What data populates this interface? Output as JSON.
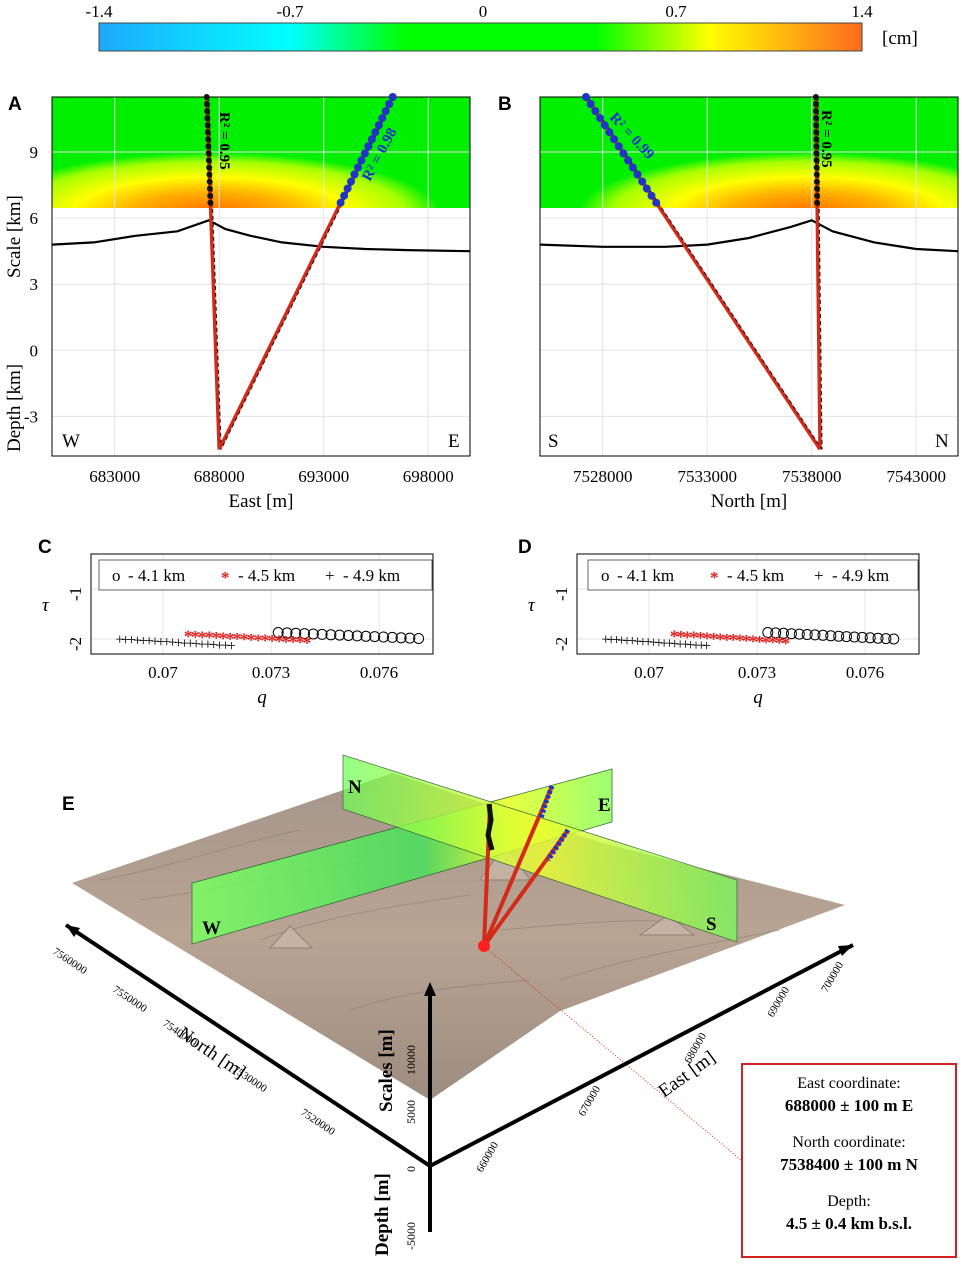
{
  "colorbar": {
    "ticks": [
      "-1.4",
      "-0.7",
      "0",
      "0.7",
      "1.4"
    ],
    "unit": "[cm]",
    "colors": [
      "#1aa3ff",
      "#00ffff",
      "#00ff00",
      "#00ff00",
      "#ffff00",
      "#ff6a1e"
    ]
  },
  "panel_a": {
    "letter": "A",
    "xlabel": "East [m]",
    "ylabel": "Depth [km]",
    "ylabel2": "Scale [km]",
    "left_dir": "W",
    "right_dir": "E",
    "r2_black": "R² = 0.95",
    "r2_blue": "R² = 0.98"
  },
  "panel_b": {
    "letter": "B",
    "xlabel": "North [m]",
    "left_dir": "S",
    "right_dir": "N",
    "r2_black": "R² = 0.95",
    "r2_blue": "R² = 0.99"
  },
  "panel_c": {
    "letter": "C",
    "xlabel": "q",
    "ylabel": "τ"
  },
  "panel_d": {
    "letter": "D",
    "xlabel": "q",
    "ylabel": "τ"
  },
  "legend": {
    "marker_circle": "o",
    "marker_star": "*",
    "marker_plus": "+",
    "label_41": "- 4.1 km",
    "label_45": "- 4.5 km",
    "label_49": "- 4.9 km"
  },
  "panel_e": {
    "letter": "E",
    "plane_labels": [
      "N",
      "E",
      "W",
      "S"
    ],
    "north_label": "North [m]",
    "east_label": "East [m]",
    "scales_label": "Scales [m]",
    "depth_label": "Depth [m]",
    "north_ticks": [
      "7560000",
      "7550000",
      "7540000",
      "7530000",
      "7520000"
    ],
    "east_ticks": [
      "660000",
      "670000",
      "680000",
      "690000",
      "700000"
    ],
    "vert_ticks": [
      "10000",
      "5000",
      "0",
      "-5000"
    ]
  },
  "result_box": {
    "east_label": "East coordinate:",
    "east_value": "688000 ± 100 m E",
    "north_label": "North coordinate:",
    "north_value": "7538400 ± 100 m N",
    "depth_label": "Depth:",
    "depth_value": "4.5 ± 0.4 km b.s.l."
  },
  "chart_data": [
    {
      "type": "line",
      "panel": "A",
      "x_label": "East [m]",
      "y_label": "Depth [km] / Scale [km]",
      "x_ticks": [
        "683000",
        "688000",
        "693000",
        "698000"
      ],
      "y_ticks": [
        "9",
        "6",
        "3",
        "0",
        "-3"
      ],
      "xlim": [
        680000,
        700000
      ],
      "ylim": [
        -4.8,
        11.5
      ],
      "source_depth": {
        "x": 688000,
        "y": -4.5
      },
      "topography_x": [
        680000,
        682000,
        684000,
        686000,
        687500,
        688300,
        689500,
        691000,
        693000,
        695000,
        697000,
        700000
      ],
      "topography_y": [
        4.8,
        4.9,
        5.2,
        5.4,
        5.9,
        5.5,
        5.2,
        4.9,
        4.7,
        4.6,
        4.55,
        4.5
      ],
      "black_fit": {
        "x": [
          687400,
          688000
        ],
        "y": [
          11.5,
          -4.5
        ],
        "r2": 0.95
      },
      "blue_fit": {
        "x": [
          696300,
          688000
        ],
        "y": [
          11.5,
          -4.5
        ],
        "r2": 0.98
      }
    },
    {
      "type": "line",
      "panel": "B",
      "x_label": "North [m]",
      "x_ticks": [
        "7528000",
        "7533000",
        "7538000",
        "7543000"
      ],
      "xlim": [
        7525000,
        7545000
      ],
      "ylim": [
        -4.8,
        11.5
      ],
      "source_depth": {
        "x": 7538400,
        "y": -4.5
      },
      "topography_x": [
        7525000,
        7528000,
        7531000,
        7533000,
        7535000,
        7537000,
        7538000,
        7539000,
        7541000,
        7543000,
        7545000
      ],
      "topography_y": [
        4.8,
        4.7,
        4.7,
        4.8,
        5.1,
        5.6,
        5.9,
        5.4,
        4.9,
        4.6,
        4.5
      ],
      "black_fit": {
        "x": [
          7538200,
          7538400
        ],
        "y": [
          11.5,
          -4.5
        ],
        "r2": 0.95
      },
      "blue_fit": {
        "x": [
          7527200,
          7538400
        ],
        "y": [
          11.5,
          -4.5
        ],
        "r2": 0.99
      }
    },
    {
      "type": "scatter",
      "panel": "C",
      "x_label": "q",
      "y_label": "τ",
      "x_ticks": [
        "0.07",
        "0.073",
        "0.076"
      ],
      "y_ticks": [
        "-1",
        "-2"
      ],
      "xlim": [
        0.068,
        0.0775
      ],
      "ylim": [
        -2.3,
        -0.3
      ],
      "series": [
        {
          "name": "- 4.1 km",
          "marker": "o",
          "x_range": [
            0.0732,
            0.0771
          ],
          "y_range": [
            -1.87,
            -1.99
          ]
        },
        {
          "name": "- 4.5 km",
          "marker": "*",
          "x_range": [
            0.0707,
            0.074
          ],
          "y_range": [
            -1.93,
            -2.06
          ]
        },
        {
          "name": "- 4.9 km",
          "marker": "+",
          "x_range": [
            0.0688,
            0.0719
          ],
          "y_range": [
            -1.99,
            -2.12
          ]
        }
      ]
    },
    {
      "type": "scatter",
      "panel": "D",
      "x_label": "q",
      "y_label": "τ",
      "x_ticks": [
        "0.07",
        "0.073",
        "0.076"
      ],
      "y_ticks": [
        "-1",
        "-2"
      ],
      "xlim": [
        0.068,
        0.0775
      ],
      "ylim": [
        -2.3,
        -0.3
      ],
      "series": [
        {
          "name": "- 4.1 km",
          "marker": "o",
          "x_range": [
            0.0733,
            0.0768
          ],
          "y_range": [
            -1.87,
            -2.0
          ]
        },
        {
          "name": "- 4.5 km",
          "marker": "*",
          "x_range": [
            0.0707,
            0.0738
          ],
          "y_range": [
            -1.93,
            -2.07
          ]
        },
        {
          "name": "- 4.9 km",
          "marker": "+",
          "x_range": [
            0.0688,
            0.0716
          ],
          "y_range": [
            -1.99,
            -2.12
          ]
        }
      ]
    }
  ]
}
